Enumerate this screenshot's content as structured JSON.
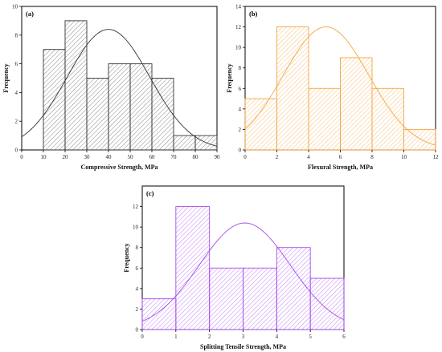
{
  "chart_data": [
    {
      "type": "bar",
      "label": "(a)",
      "xlabel": "Compressive Strength, MPa",
      "ylabel": "Frequency",
      "bin_edges": [
        10,
        20,
        30,
        40,
        50,
        60,
        70,
        80,
        90
      ],
      "values": [
        7,
        9,
        5,
        6,
        6,
        5,
        1,
        1
      ],
      "xlim": [
        0,
        90
      ],
      "ylim": [
        0,
        10
      ],
      "xticks": [
        0,
        10,
        20,
        30,
        40,
        50,
        60,
        70,
        80,
        90
      ],
      "yticks": [
        0,
        2,
        4,
        6,
        8,
        10
      ],
      "fit_curve": {
        "type": "normal",
        "peak_x": 40,
        "peak_y": 8.4,
        "sigma": 19
      },
      "color": "#555555"
    },
    {
      "type": "bar",
      "label": "(b)",
      "xlabel": "Flexural Strength, MPa",
      "ylabel": "Frequency",
      "bin_edges": [
        0,
        2,
        4,
        6,
        8,
        10,
        12
      ],
      "values": [
        5,
        12,
        6,
        9,
        6,
        2
      ],
      "xlim": [
        0,
        12
      ],
      "ylim": [
        0,
        14
      ],
      "xticks": [
        0,
        2,
        4,
        6,
        8,
        10,
        12
      ],
      "yticks": [
        0,
        2,
        4,
        6,
        8,
        10,
        12,
        14
      ],
      "fit_curve": {
        "type": "normal",
        "peak_x": 5.1,
        "peak_y": 12,
        "sigma": 2.7
      },
      "color": "#F5A640"
    },
    {
      "type": "bar",
      "label": "(c)",
      "xlabel": "Splitting Tensile Strength, MPa",
      "ylabel": "Frequency",
      "bin_edges": [
        0,
        1,
        2,
        3,
        4,
        5,
        6
      ],
      "values": [
        3,
        12,
        6,
        6,
        8,
        5
      ],
      "xlim": [
        0,
        6
      ],
      "ylim": [
        0,
        14
      ],
      "xticks": [
        0,
        1,
        2,
        3,
        4,
        5,
        6
      ],
      "yticks": [
        0,
        2,
        4,
        6,
        8,
        10,
        12
      ],
      "fit_curve": {
        "type": "normal",
        "peak_x": 3.05,
        "peak_y": 10.4,
        "sigma": 1.35
      },
      "color": "#A64CF0"
    }
  ]
}
